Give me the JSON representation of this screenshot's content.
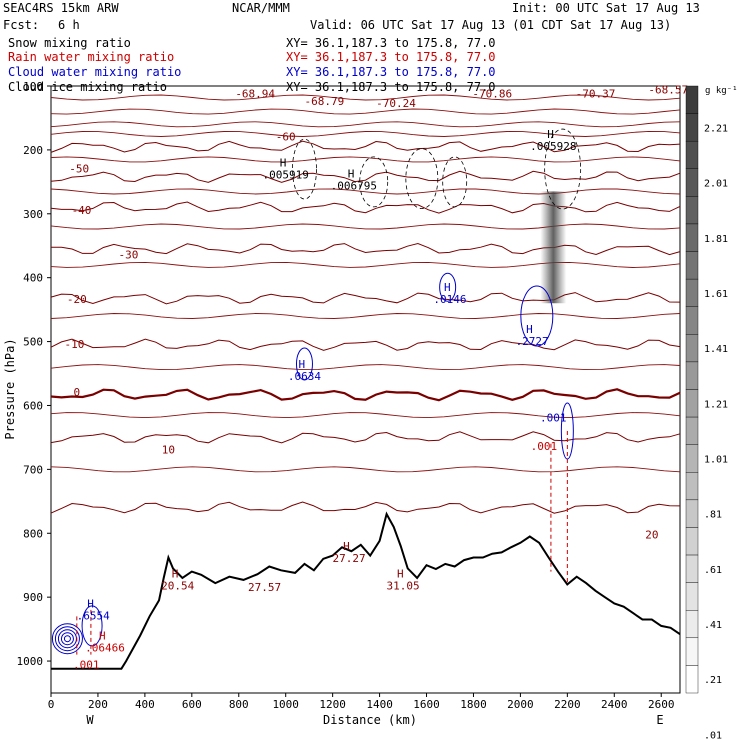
{
  "header": {
    "model": "SEAC4RS 15km ARW",
    "center": "NCAR/MMM",
    "init": "Init: 00 UTC Sat 17 Aug 13",
    "fcst_label": "Fcst:",
    "fcst_value": "6 h",
    "valid": "Valid: 06 UTC Sat 17 Aug 13 (01 CDT Sat 17 Aug 13)",
    "fields": [
      {
        "name": "Snow mixing ratio",
        "xy": "XY=  36.1,187.3 to 175.8, 77.0",
        "color": "#000000"
      },
      {
        "name": "Rain water mixing ratio",
        "xy": "XY=  36.1,187.3 to 175.8, 77.0",
        "color": "#cc0000"
      },
      {
        "name": "Cloud water mixing ratio",
        "xy": "XY=  36.1,187.3 to 175.8, 77.0",
        "color": "#0000cc"
      },
      {
        "name": "Cloud ice mixing ratio",
        "xy": "XY=  36.1,187.3 to 175.8, 77.0",
        "color": "#000000"
      }
    ]
  },
  "colorbar": {
    "unit": "g kg⁻¹",
    "labels": [
      "2.21",
      "2.01",
      "1.81",
      "1.61",
      "1.41",
      "1.21",
      "1.01",
      ".81",
      ".61",
      ".41",
      ".21",
      ".01"
    ]
  },
  "chart_data": {
    "type": "line",
    "xlabel": "Distance (km)",
    "ylabel": "Pressure (hPa)",
    "xlim": [
      0,
      2680
    ],
    "ylim": [
      1050,
      100
    ],
    "x_ticks": [
      0,
      200,
      400,
      600,
      800,
      1000,
      1200,
      1400,
      1600,
      1800,
      2000,
      2200,
      2400,
      2600
    ],
    "y_ticks": [
      100,
      200,
      300,
      400,
      500,
      600,
      700,
      800,
      900,
      1000
    ],
    "x_end_labels": [
      "W",
      "E"
    ],
    "temperature_labels": [
      "-68.94",
      "-68.79",
      "-70.24",
      "-70.86",
      "-70.37",
      "-68.57",
      "-60",
      "-50",
      "-40",
      "-30",
      "-20",
      "-10",
      "0",
      "10",
      "20"
    ],
    "annotations": [
      {
        "text": "H",
        "value": ".005919"
      },
      {
        "text": "H",
        "value": ".006795"
      },
      {
        "text": "H",
        "value": ".005928"
      },
      {
        "text": "H",
        "value": ".0146"
      },
      {
        "text": "H",
        "value": ".2727"
      },
      {
        "text": "H",
        "value": ".0634"
      },
      {
        "text": "H",
        "value": ".6554"
      },
      {
        "text": "H",
        "value": ".06466"
      },
      {
        "text": "",
        "value": ".001"
      },
      {
        "text": "",
        "value": ".001"
      },
      {
        "text": "",
        "value": ".001"
      },
      {
        "text": "H",
        "value": "20.54"
      },
      {
        "text": "",
        "value": "27.57"
      },
      {
        "text": "H",
        "value": "27.27"
      },
      {
        "text": "H",
        "value": "31.05"
      }
    ],
    "terrain": {
      "x": [
        0,
        300,
        320,
        380,
        420,
        460,
        480,
        500,
        520,
        560,
        600,
        640,
        700,
        760,
        820,
        880,
        930,
        980,
        1040,
        1080,
        1120,
        1160,
        1200,
        1240,
        1280,
        1320,
        1360,
        1400,
        1430,
        1460,
        1490,
        1520,
        1560,
        1600,
        1640,
        1680,
        1720,
        1760,
        1800,
        1840,
        1880,
        1920,
        1960,
        2000,
        2040,
        2080,
        2120,
        2160,
        2200,
        2240,
        2280,
        2320,
        2360,
        2400,
        2440,
        2480,
        2520,
        2560,
        2600,
        2640,
        2680
      ],
      "y": [
        1012,
        1012,
        1000,
        960,
        930,
        905,
        870,
        838,
        855,
        870,
        860,
        865,
        878,
        868,
        873,
        864,
        852,
        858,
        862,
        848,
        858,
        840,
        835,
        822,
        828,
        818,
        835,
        812,
        770,
        790,
        820,
        855,
        870,
        850,
        856,
        848,
        852,
        842,
        838,
        838,
        832,
        830,
        822,
        815,
        805,
        815,
        838,
        860,
        880,
        868,
        878,
        890,
        900,
        910,
        915,
        925,
        935,
        935,
        945,
        948,
        958
      ]
    },
    "isotherms": [
      {
        "label": "0",
        "base": 583
      },
      {
        "label": "10",
        "base": 650
      },
      {
        "label": "20",
        "base": 760
      },
      {
        "label": "-10",
        "base": 505
      },
      {
        "label": "-20",
        "base": 432
      },
      {
        "label": "-30",
        "base": 355
      },
      {
        "label": "-40",
        "base": 290
      },
      {
        "label": "-50",
        "base": 242
      },
      {
        "label": "-60",
        "base": 195
      }
    ],
    "grid": false,
    "legend": "none"
  }
}
